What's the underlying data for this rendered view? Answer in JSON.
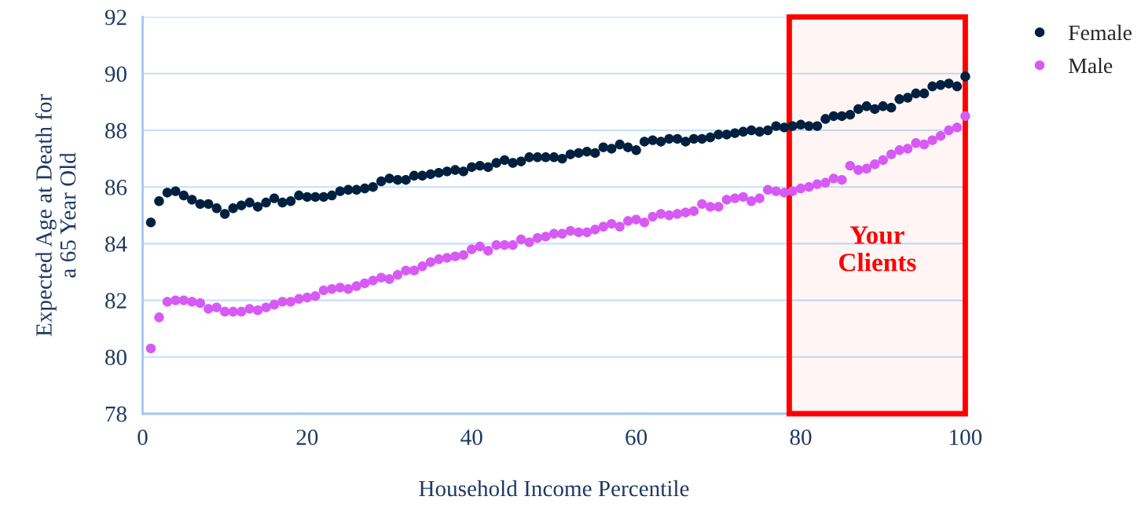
{
  "chart_data": {
    "type": "scatter",
    "xlabel": "Household Income Percentile",
    "ylabel": "Expected Age at Death for\na 65 Year Old",
    "x": [
      1,
      2,
      3,
      4,
      5,
      6,
      7,
      8,
      9,
      10,
      11,
      12,
      13,
      14,
      15,
      16,
      17,
      18,
      19,
      20,
      21,
      22,
      23,
      24,
      25,
      26,
      27,
      28,
      29,
      30,
      31,
      32,
      33,
      34,
      35,
      36,
      37,
      38,
      39,
      40,
      41,
      42,
      43,
      44,
      45,
      46,
      47,
      48,
      49,
      50,
      51,
      52,
      53,
      54,
      55,
      56,
      57,
      58,
      59,
      60,
      61,
      62,
      63,
      64,
      65,
      66,
      67,
      68,
      69,
      70,
      71,
      72,
      73,
      74,
      75,
      76,
      77,
      78,
      79,
      80,
      81,
      82,
      83,
      84,
      85,
      86,
      87,
      88,
      89,
      90,
      91,
      92,
      93,
      94,
      95,
      96,
      97,
      98,
      99,
      100
    ],
    "series": [
      {
        "name": "Female",
        "color": "#002040",
        "values": [
          84.75,
          85.5,
          85.8,
          85.85,
          85.7,
          85.55,
          85.4,
          85.4,
          85.25,
          85.05,
          85.25,
          85.35,
          85.45,
          85.3,
          85.45,
          85.6,
          85.45,
          85.5,
          85.7,
          85.65,
          85.65,
          85.65,
          85.7,
          85.85,
          85.9,
          85.9,
          85.95,
          86.0,
          86.2,
          86.3,
          86.25,
          86.25,
          86.4,
          86.4,
          86.45,
          86.5,
          86.55,
          86.6,
          86.55,
          86.7,
          86.75,
          86.7,
          86.85,
          86.95,
          86.85,
          86.9,
          87.05,
          87.05,
          87.05,
          87.05,
          87.0,
          87.15,
          87.2,
          87.25,
          87.2,
          87.4,
          87.35,
          87.5,
          87.4,
          87.3,
          87.6,
          87.65,
          87.6,
          87.7,
          87.7,
          87.6,
          87.7,
          87.7,
          87.75,
          87.85,
          87.85,
          87.9,
          87.95,
          88.0,
          87.95,
          88.0,
          88.15,
          88.1,
          88.15,
          88.2,
          88.15,
          88.15,
          88.4,
          88.5,
          88.5,
          88.55,
          88.75,
          88.85,
          88.75,
          88.85,
          88.8,
          89.1,
          89.15,
          89.3,
          89.3,
          89.55,
          89.6,
          89.65,
          89.55,
          89.9
        ]
      },
      {
        "name": "Male",
        "color": "#d75af5",
        "values": [
          80.3,
          81.4,
          81.95,
          82.0,
          82.0,
          81.95,
          81.9,
          81.7,
          81.75,
          81.6,
          81.6,
          81.6,
          81.7,
          81.65,
          81.75,
          81.85,
          81.95,
          81.95,
          82.05,
          82.1,
          82.15,
          82.35,
          82.4,
          82.45,
          82.4,
          82.5,
          82.6,
          82.7,
          82.8,
          82.75,
          82.9,
          83.05,
          83.05,
          83.2,
          83.35,
          83.45,
          83.5,
          83.55,
          83.6,
          83.8,
          83.9,
          83.75,
          83.95,
          83.95,
          83.95,
          84.15,
          84.05,
          84.2,
          84.25,
          84.35,
          84.35,
          84.45,
          84.4,
          84.4,
          84.5,
          84.6,
          84.7,
          84.6,
          84.8,
          84.85,
          84.75,
          84.95,
          85.05,
          85.0,
          85.05,
          85.1,
          85.15,
          85.4,
          85.3,
          85.3,
          85.55,
          85.6,
          85.65,
          85.5,
          85.6,
          85.9,
          85.85,
          85.8,
          85.85,
          85.95,
          86.0,
          86.1,
          86.15,
          86.3,
          86.25,
          86.75,
          86.6,
          86.65,
          86.8,
          86.95,
          87.15,
          87.3,
          87.35,
          87.55,
          87.5,
          87.65,
          87.8,
          88.0,
          88.1,
          88.5
        ]
      }
    ],
    "xlim": [
      0,
      100
    ],
    "xticks": [
      0,
      20,
      40,
      60,
      80,
      100
    ],
    "ylim": [
      78,
      92
    ],
    "yticks": [
      78,
      80,
      82,
      84,
      86,
      88,
      90,
      92
    ],
    "grid": "y",
    "legend": "top right",
    "marker": "circle",
    "bands": [
      {
        "axis": "x",
        "from": 78.6,
        "to": 100,
        "label": "Your\nClients",
        "color": "#ff0000"
      }
    ]
  }
}
